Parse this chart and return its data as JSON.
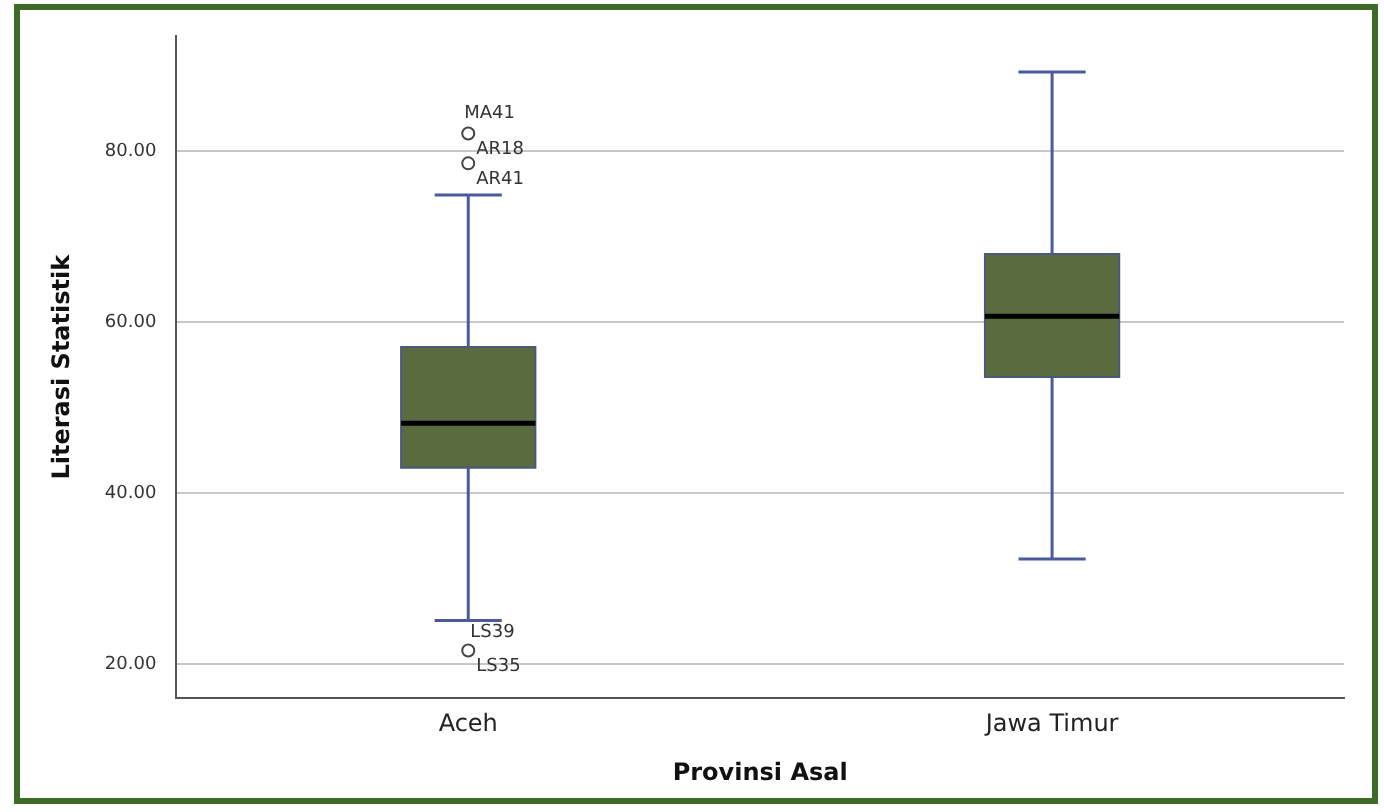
{
  "chart_data": {
    "type": "box",
    "xlabel": "Provinsi Asal",
    "ylabel": "Literasi Statistik",
    "categories": [
      "Aceh",
      "Jawa Timur"
    ],
    "color": "#5a6b40",
    "boxes": [
      {
        "low": 25.1,
        "q1": 43.0,
        "median": 48.2,
        "q3": 57.1,
        "high": 74.9,
        "outliers": [
          82.1,
          78.6,
          21.6
        ]
      },
      {
        "low": 32.3,
        "q1": 53.6,
        "median": 60.7,
        "q3": 68.0,
        "high": 89.3
      }
    ],
    "ylim": [
      16,
      93.5
    ],
    "yticks": [
      {
        "value": 20,
        "label": "20.00"
      },
      {
        "value": 40,
        "label": "40.00"
      },
      {
        "value": 60,
        "label": "60.00"
      },
      {
        "value": 80,
        "label": "80.00"
      }
    ],
    "grid": "y",
    "annotations": [
      "MA41",
      "AR18",
      "AR41",
      "LS39",
      "LS35"
    ]
  }
}
